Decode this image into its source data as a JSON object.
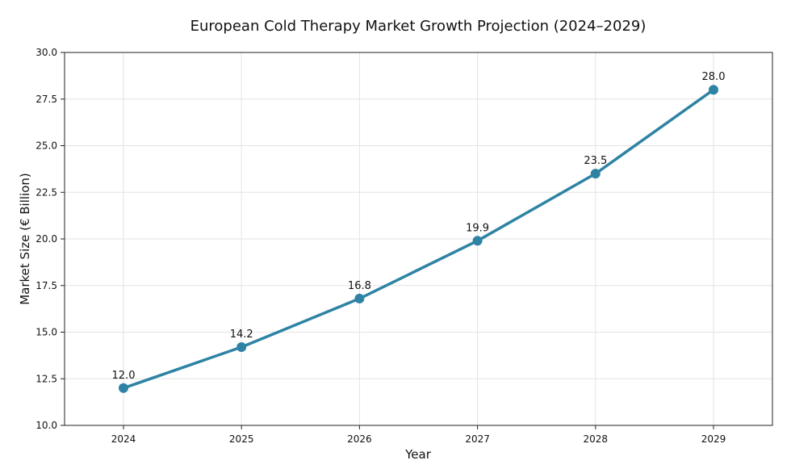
{
  "chart_data": {
    "type": "line",
    "title": "European Cold Therapy Market Growth Projection (2024–2029)",
    "xlabel": "Year",
    "ylabel": "Market Size (€ Billion)",
    "x": [
      "2024",
      "2025",
      "2026",
      "2027",
      "2028",
      "2029"
    ],
    "values": [
      12.0,
      14.2,
      16.8,
      19.9,
      23.5,
      28.0
    ],
    "data_labels": [
      "12.0",
      "14.2",
      "16.8",
      "19.9",
      "23.5",
      "28.0"
    ],
    "ylim": [
      10,
      30
    ],
    "yticks": [
      "10.0",
      "12.5",
      "15.0",
      "17.5",
      "20.0",
      "22.5",
      "25.0",
      "27.5",
      "30.0"
    ],
    "grid": true,
    "line_color": "#2e83a4"
  }
}
